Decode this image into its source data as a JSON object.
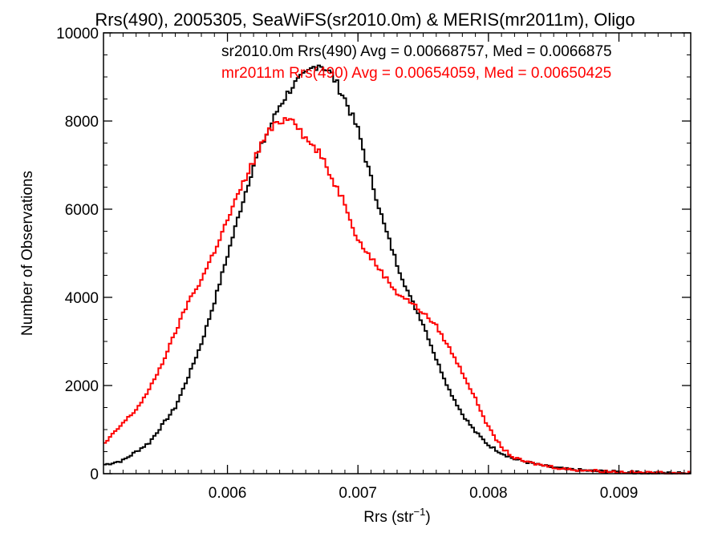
{
  "chart_data": {
    "type": "line",
    "title": "Rrs(490), 2005305, SeaWiFS(sr2010.0m) & MERIS(mr2011m), Oligo",
    "xlabel": "Rrs (str",
    "xlabel_sup": "−1",
    "xlabel_suffix": ")",
    "ylabel": "Number of Observations",
    "xlim": [
      0.00505,
      0.00955
    ],
    "ylim": [
      0,
      10000
    ],
    "x_ticks": [
      0.006,
      0.007,
      0.008,
      0.009
    ],
    "x_tick_labels": [
      "0.006",
      "0.007",
      "0.008",
      "0.009"
    ],
    "y_ticks": [
      0,
      2000,
      4000,
      6000,
      8000,
      10000
    ],
    "y_tick_labels": [
      "0",
      "2000",
      "4000",
      "6000",
      "8000",
      "10000"
    ],
    "grid": false,
    "line_style": "step",
    "series": [
      {
        "name": "sr2010.0m",
        "legend_text": "sr2010.0m Rrs(490) Avg = 0.00668757, Med = 0.0066875",
        "color": "#000000",
        "x": [
          0.00505,
          0.0052,
          0.0054,
          0.0055,
          0.0056,
          0.0057,
          0.0058,
          0.0059,
          0.006,
          0.0061,
          0.0062,
          0.0063,
          0.0064,
          0.0065,
          0.0066,
          0.00665,
          0.0067,
          0.00675,
          0.0068,
          0.0069,
          0.007,
          0.0071,
          0.0072,
          0.0073,
          0.0074,
          0.0075,
          0.0076,
          0.0077,
          0.0078,
          0.0079,
          0.008,
          0.0081,
          0.0082,
          0.0083,
          0.0084,
          0.0085,
          0.0086,
          0.0088,
          0.009,
          0.0092,
          0.00955
        ],
        "y": [
          200,
          300,
          700,
          1100,
          1500,
          2200,
          2950,
          3900,
          4950,
          6000,
          7000,
          7700,
          8350,
          8800,
          9050,
          9200,
          9300,
          9200,
          9050,
          8500,
          7800,
          6700,
          5650,
          4750,
          4000,
          3400,
          2600,
          1900,
          1350,
          950,
          650,
          470,
          330,
          260,
          190,
          140,
          100,
          60,
          40,
          20,
          10
        ]
      },
      {
        "name": "mr2011m",
        "legend_text": "mr2011m Rrs(490) Avg = 0.00654059, Med = 0.00650425",
        "color": "#ff0000",
        "x": [
          0.00505,
          0.0052,
          0.0053,
          0.0054,
          0.0055,
          0.0056,
          0.0057,
          0.0058,
          0.0059,
          0.006,
          0.0061,
          0.0062,
          0.0063,
          0.0064,
          0.00645,
          0.0065,
          0.0066,
          0.0067,
          0.0068,
          0.0069,
          0.007,
          0.0071,
          0.0072,
          0.0073,
          0.0074,
          0.0075,
          0.0076,
          0.0077,
          0.0078,
          0.0079,
          0.008,
          0.0081,
          0.0082,
          0.0083,
          0.0084,
          0.0086,
          0.0088,
          0.009,
          0.0092,
          0.00955
        ],
        "y": [
          650,
          1150,
          1450,
          1900,
          2500,
          3200,
          3900,
          4400,
          5050,
          5750,
          6450,
          7100,
          7700,
          8000,
          8050,
          8100,
          7600,
          7300,
          6700,
          6150,
          5300,
          4900,
          4500,
          4100,
          3900,
          3650,
          3350,
          2850,
          2300,
          1700,
          1050,
          600,
          350,
          260,
          200,
          100,
          70,
          40,
          20,
          15
        ]
      }
    ]
  }
}
